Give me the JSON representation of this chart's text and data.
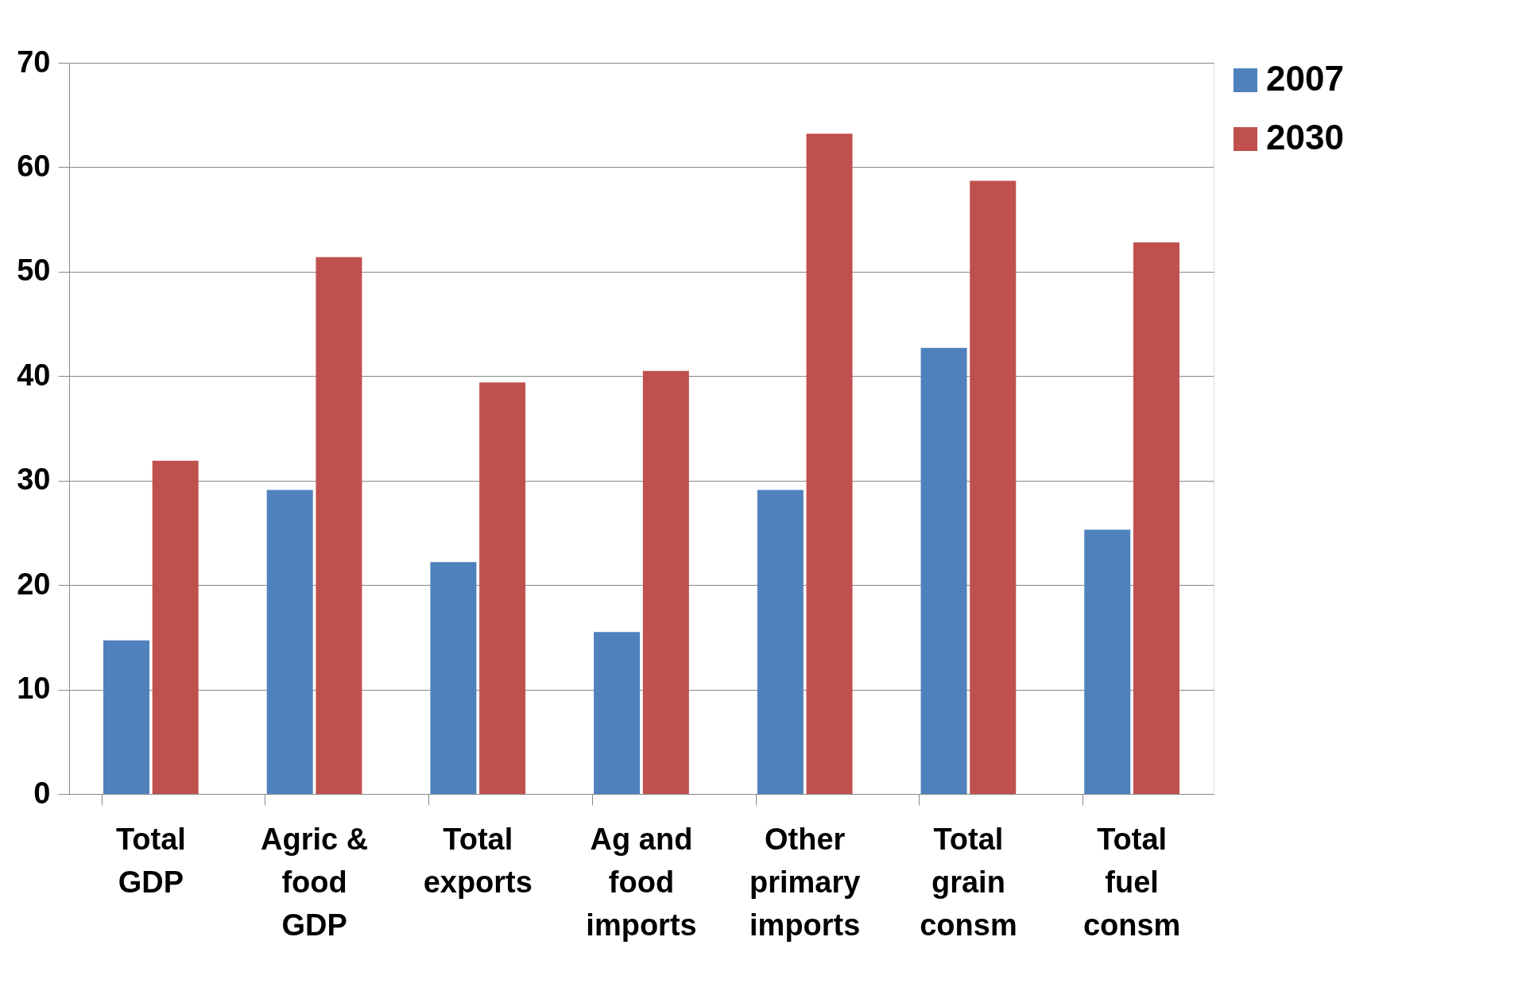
{
  "chart_data": {
    "type": "bar",
    "categories": [
      "Total GDP",
      "Agric & food GDP",
      "Total exports",
      "Ag and food imports",
      "Other primary imports",
      "Total grain consm",
      "Total fuel consm"
    ],
    "series": [
      {
        "name": "2007",
        "color": "#4f81bd",
        "values": [
          14.7,
          29.1,
          22.2,
          15.5,
          29.1,
          42.7,
          25.3
        ]
      },
      {
        "name": "2030",
        "color": "#c0504d",
        "values": [
          31.9,
          51.4,
          39.4,
          40.5,
          63.2,
          58.7,
          52.8
        ]
      }
    ],
    "ylim": [
      0,
      70
    ],
    "yticks": [
      0,
      10,
      20,
      30,
      40,
      50,
      60,
      70
    ],
    "grid": "y",
    "legend": "right"
  }
}
